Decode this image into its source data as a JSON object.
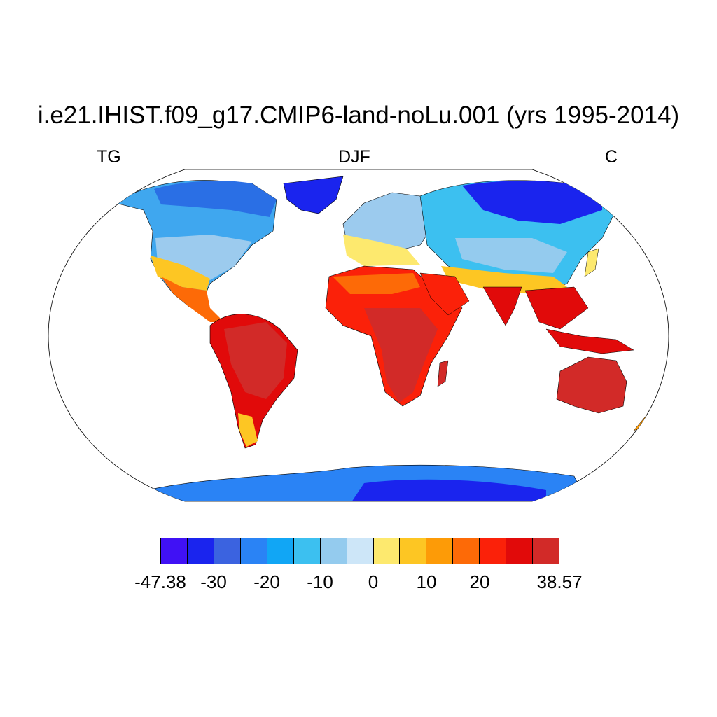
{
  "title": "i.e21.IHIST.f09_g17.CMIP6-land-noLu.001 (yrs 1995-2014)",
  "left_label": "TG",
  "center_label": "DJF",
  "right_label": "C",
  "colorbar": {
    "colors": [
      "#4011f5",
      "#1a24ee",
      "#3b63e0",
      "#2a83f5",
      "#11a6f5",
      "#3cc0f0",
      "#94cbee",
      "#cde6f8",
      "#fde96e",
      "#fdc623",
      "#fd9b07",
      "#fd6a07",
      "#fb2109",
      "#e10a0a",
      "#d22a28"
    ],
    "min_label": "-47.38",
    "max_label": "38.57",
    "tick_labels": [
      "-30",
      "-20",
      "-10",
      "0",
      "10",
      "20"
    ]
  }
}
